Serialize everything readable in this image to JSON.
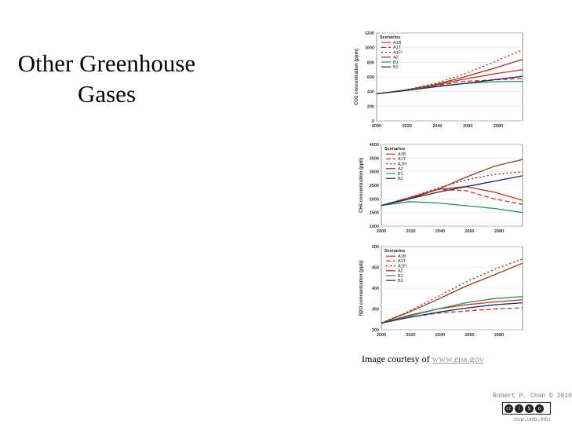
{
  "slide": {
    "title_line1": "Other Greenhouse",
    "title_line2": "Gases"
  },
  "caption": {
    "prefix": "Image courtesy of ",
    "link_text": "www.epa.gov"
  },
  "footer": {
    "credit": "Robert P. Chan © 2010",
    "site": "ocw.umb.edu"
  },
  "chart_data": [
    {
      "type": "line",
      "ylabel": "CO2 concentration (ppm)",
      "yticks": [
        "0",
        "200",
        "400",
        "600",
        "800",
        "1000",
        "1200"
      ],
      "xticks": [
        "2000",
        "2020",
        "2040",
        "2060",
        "2080"
      ],
      "xlim": [
        2000,
        2100
      ],
      "ylim": [
        0,
        1200
      ],
      "legend_title": "Scenarios",
      "legend_position": "top-left",
      "x": [
        2000,
        2020,
        2040,
        2060,
        2080,
        2100
      ],
      "series": [
        {
          "name": "A1B",
          "color": "#c0392b",
          "dash": "",
          "values": [
            370,
            420,
            490,
            570,
            640,
            700
          ]
        },
        {
          "name": "A1T",
          "color": "#c0392b",
          "dash": "6,3",
          "values": [
            370,
            420,
            480,
            540,
            560,
            580
          ]
        },
        {
          "name": "A1FI",
          "color": "#a0221c",
          "dash": "2,3",
          "values": [
            370,
            425,
            510,
            640,
            800,
            970
          ]
        },
        {
          "name": "A2",
          "color": "#8b3a1a",
          "dash": "",
          "values": [
            370,
            420,
            495,
            600,
            715,
            840
          ]
        },
        {
          "name": "B1",
          "color": "#2e8b57",
          "dash": "",
          "values": [
            370,
            420,
            470,
            510,
            535,
            540
          ]
        },
        {
          "name": "B2",
          "color": "#1f2a6b",
          "dash": "",
          "values": [
            370,
            415,
            465,
            510,
            560,
            610
          ]
        }
      ]
    },
    {
      "type": "line",
      "ylabel": "CH4 concentration (ppb)",
      "yticks": [
        "1000",
        "1500",
        "2000",
        "2500",
        "3000",
        "3500",
        "4000"
      ],
      "xticks": [
        "2000",
        "2020",
        "2040",
        "2060",
        "2080"
      ],
      "xlim": [
        2000,
        2100
      ],
      "ylim": [
        1000,
        4000
      ],
      "legend_title": "Scenarios",
      "legend_position": "top-left",
      "x": [
        2000,
        2020,
        2040,
        2060,
        2080,
        2100
      ],
      "series": [
        {
          "name": "A1B",
          "color": "#c0392b",
          "dash": "",
          "values": [
            1760,
            2050,
            2350,
            2450,
            2250,
            1950
          ]
        },
        {
          "name": "A1T",
          "color": "#c0392b",
          "dash": "6,3",
          "values": [
            1760,
            2050,
            2350,
            2300,
            2000,
            1800
          ]
        },
        {
          "name": "A1FI",
          "color": "#a0221c",
          "dash": "2,3",
          "values": [
            1760,
            2050,
            2400,
            2700,
            2900,
            3000
          ]
        },
        {
          "name": "A2",
          "color": "#8b3a1a",
          "dash": "",
          "values": [
            1760,
            2000,
            2350,
            2800,
            3200,
            3450
          ]
        },
        {
          "name": "B1",
          "color": "#2e8b57",
          "dash": "",
          "values": [
            1760,
            1900,
            1850,
            1750,
            1650,
            1500
          ]
        },
        {
          "name": "B2",
          "color": "#1f2a6b",
          "dash": "",
          "values": [
            1760,
            2000,
            2250,
            2450,
            2650,
            2850
          ]
        }
      ]
    },
    {
      "type": "line",
      "ylabel": "N2O concentration (ppb)",
      "yticks": [
        "300",
        "350",
        "400",
        "450",
        "500"
      ],
      "xticks": [
        "2000",
        "2020",
        "2040",
        "2060",
        "2080"
      ],
      "xlim": [
        2000,
        2100
      ],
      "ylim": [
        300,
        500
      ],
      "legend_title": "Scenarios",
      "legend_position": "top-left",
      "x": [
        2000,
        2020,
        2040,
        2060,
        2080,
        2100
      ],
      "series": [
        {
          "name": "A1B",
          "color": "#c0392b",
          "dash": "",
          "values": [
            316,
            335,
            350,
            360,
            367,
            372
          ]
        },
        {
          "name": "A1T",
          "color": "#c0392b",
          "dash": "6,3",
          "values": [
            316,
            330,
            340,
            345,
            350,
            353
          ]
        },
        {
          "name": "A1FI",
          "color": "#a0221c",
          "dash": "2,3",
          "values": [
            316,
            345,
            380,
            415,
            445,
            470
          ]
        },
        {
          "name": "A2",
          "color": "#8b3a1a",
          "dash": "",
          "values": [
            316,
            343,
            373,
            405,
            432,
            460
          ]
        },
        {
          "name": "B1",
          "color": "#2e8b57",
          "dash": "",
          "values": [
            316,
            333,
            350,
            365,
            375,
            380
          ]
        },
        {
          "name": "B2",
          "color": "#1f2a6b",
          "dash": "",
          "values": [
            316,
            330,
            342,
            352,
            360,
            365
          ]
        }
      ]
    }
  ]
}
